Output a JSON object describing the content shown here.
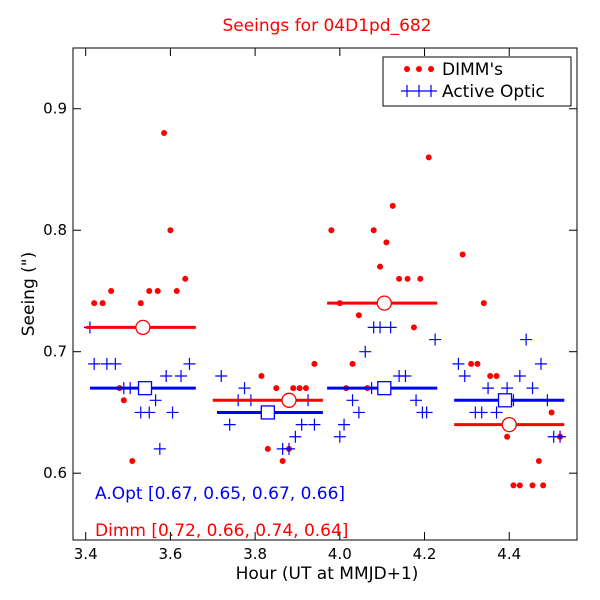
{
  "chart_data": {
    "type": "scatter",
    "title": "Seeings for 04D1pd_682",
    "xlabel": "Hour (UT at MMJD+1)",
    "ylabel": "Seeing (\")",
    "xlim": [
      3.37,
      4.56
    ],
    "ylim": [
      0.545,
      0.95
    ],
    "x_ticks": [
      3.4,
      3.6,
      3.8,
      4.0,
      4.2,
      4.4
    ],
    "x_tick_labels": [
      "3.4",
      "3.6",
      "3.8",
      "4.0",
      "4.2",
      "4.4"
    ],
    "y_ticks": [
      0.6,
      0.7,
      0.8,
      0.9
    ],
    "y_tick_labels": [
      "0.6",
      "0.7",
      "0.8",
      "0.9"
    ],
    "legend_position": "top-right",
    "colors": {
      "dimm": "#ff0000",
      "active_optic": "#0000ff"
    },
    "series": [
      {
        "name": "DIMM's",
        "marker": "dot",
        "color": "#ff0000",
        "points": [
          [
            3.42,
            0.74
          ],
          [
            3.44,
            0.74
          ],
          [
            3.46,
            0.75
          ],
          [
            3.48,
            0.67
          ],
          [
            3.49,
            0.66
          ],
          [
            3.51,
            0.61
          ],
          [
            3.53,
            0.74
          ],
          [
            3.55,
            0.75
          ],
          [
            3.57,
            0.75
          ],
          [
            3.585,
            0.88
          ],
          [
            3.6,
            0.8
          ],
          [
            3.615,
            0.75
          ],
          [
            3.635,
            0.76
          ],
          [
            3.815,
            0.68
          ],
          [
            3.83,
            0.62
          ],
          [
            3.85,
            0.67
          ],
          [
            3.865,
            0.61
          ],
          [
            3.88,
            0.62
          ],
          [
            3.89,
            0.67
          ],
          [
            3.905,
            0.67
          ],
          [
            3.92,
            0.67
          ],
          [
            3.94,
            0.69
          ],
          [
            3.98,
            0.8
          ],
          [
            4.0,
            0.74
          ],
          [
            4.015,
            0.67
          ],
          [
            4.03,
            0.69
          ],
          [
            4.045,
            0.73
          ],
          [
            4.065,
            0.67
          ],
          [
            4.08,
            0.8
          ],
          [
            4.095,
            0.77
          ],
          [
            4.11,
            0.79
          ],
          [
            4.125,
            0.82
          ],
          [
            4.14,
            0.76
          ],
          [
            4.16,
            0.76
          ],
          [
            4.175,
            0.72
          ],
          [
            4.19,
            0.76
          ],
          [
            4.21,
            0.86
          ],
          [
            4.29,
            0.78
          ],
          [
            4.31,
            0.69
          ],
          [
            4.325,
            0.69
          ],
          [
            4.34,
            0.74
          ],
          [
            4.355,
            0.68
          ],
          [
            4.37,
            0.68
          ],
          [
            4.395,
            0.63
          ],
          [
            4.41,
            0.59
          ],
          [
            4.425,
            0.59
          ],
          [
            4.455,
            0.59
          ],
          [
            4.47,
            0.61
          ],
          [
            4.48,
            0.59
          ],
          [
            4.5,
            0.65
          ],
          [
            4.52,
            0.63
          ]
        ]
      },
      {
        "name": "Active Optic",
        "marker": "plus",
        "color": "#0000ff",
        "points": [
          [
            3.41,
            0.72
          ],
          [
            3.42,
            0.69
          ],
          [
            3.45,
            0.69
          ],
          [
            3.47,
            0.69
          ],
          [
            3.49,
            0.67
          ],
          [
            3.505,
            0.67
          ],
          [
            3.53,
            0.65
          ],
          [
            3.55,
            0.65
          ],
          [
            3.565,
            0.66
          ],
          [
            3.575,
            0.62
          ],
          [
            3.59,
            0.68
          ],
          [
            3.605,
            0.65
          ],
          [
            3.625,
            0.68
          ],
          [
            3.645,
            0.69
          ],
          [
            3.72,
            0.68
          ],
          [
            3.74,
            0.64
          ],
          [
            3.76,
            0.66
          ],
          [
            3.775,
            0.67
          ],
          [
            3.79,
            0.66
          ],
          [
            3.815,
            0.65
          ],
          [
            3.83,
            0.65
          ],
          [
            3.865,
            0.62
          ],
          [
            3.88,
            0.62
          ],
          [
            3.895,
            0.63
          ],
          [
            3.91,
            0.64
          ],
          [
            3.925,
            0.66
          ],
          [
            3.94,
            0.64
          ],
          [
            4.0,
            0.63
          ],
          [
            4.01,
            0.64
          ],
          [
            4.03,
            0.66
          ],
          [
            4.045,
            0.65
          ],
          [
            4.06,
            0.7
          ],
          [
            4.075,
            0.67
          ],
          [
            4.08,
            0.72
          ],
          [
            4.095,
            0.72
          ],
          [
            4.12,
            0.72
          ],
          [
            4.14,
            0.68
          ],
          [
            4.155,
            0.68
          ],
          [
            4.18,
            0.66
          ],
          [
            4.195,
            0.65
          ],
          [
            4.205,
            0.65
          ],
          [
            4.225,
            0.71
          ],
          [
            4.28,
            0.69
          ],
          [
            4.295,
            0.68
          ],
          [
            4.32,
            0.65
          ],
          [
            4.335,
            0.65
          ],
          [
            4.35,
            0.67
          ],
          [
            4.37,
            0.65
          ],
          [
            4.385,
            0.66
          ],
          [
            4.395,
            0.67
          ],
          [
            4.41,
            0.66
          ],
          [
            4.425,
            0.68
          ],
          [
            4.44,
            0.71
          ],
          [
            4.455,
            0.67
          ],
          [
            4.475,
            0.69
          ],
          [
            4.49,
            0.66
          ],
          [
            4.505,
            0.63
          ],
          [
            4.52,
            0.63
          ]
        ]
      }
    ],
    "medians": {
      "dimm": [
        {
          "x_start": 3.4,
          "x_end": 3.66,
          "x_mark": 3.535,
          "value": 0.72
        },
        {
          "x_start": 3.7,
          "x_end": 3.96,
          "x_mark": 3.88,
          "value": 0.66
        },
        {
          "x_start": 3.97,
          "x_end": 4.23,
          "x_mark": 4.105,
          "value": 0.74
        },
        {
          "x_start": 4.27,
          "x_end": 4.53,
          "x_mark": 4.4,
          "value": 0.64
        }
      ],
      "active_optic": [
        {
          "x_start": 3.41,
          "x_end": 3.66,
          "x_mark": 3.54,
          "value": 0.67
        },
        {
          "x_start": 3.71,
          "x_end": 3.96,
          "x_mark": 3.83,
          "value": 0.65
        },
        {
          "x_start": 3.97,
          "x_end": 4.23,
          "x_mark": 4.105,
          "value": 0.67
        },
        {
          "x_start": 4.27,
          "x_end": 4.53,
          "x_mark": 4.39,
          "value": 0.66
        }
      ]
    },
    "annotations": {
      "aopt": "A.Opt [0.67, 0.65, 0.67, 0.66]",
      "dimm": "Dimm [0.72, 0.66, 0.74, 0.64]"
    }
  }
}
